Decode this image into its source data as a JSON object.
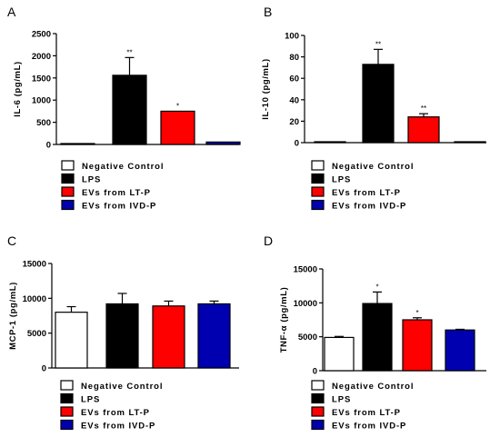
{
  "chart_data": [
    {
      "type": "bar",
      "panel": "A",
      "ylabel": "IL-6 (pg/mL)",
      "ylim": [
        0,
        2500
      ],
      "yticks": [
        0,
        500,
        1000,
        1500,
        2000,
        2500
      ],
      "categories": [
        "Negative Control",
        "LPS",
        "EVs from LT-P",
        "EVs from IVD-P"
      ],
      "values": [
        20,
        1560,
        750,
        55
      ],
      "errors": [
        0,
        400,
        0,
        0
      ],
      "significance": [
        "",
        "**",
        "*",
        ""
      ],
      "legend": [
        "Negative Control",
        "LPS",
        "EVs from LT-P",
        "EVs from IVD-P"
      ]
    },
    {
      "type": "bar",
      "panel": "B",
      "ylabel": "IL-10 (pg/mL)",
      "ylim": [
        0,
        100
      ],
      "yticks": [
        0,
        20,
        40,
        60,
        80,
        100
      ],
      "categories": [
        "Negative Control",
        "LPS",
        "EVs from LT-P",
        "EVs from IVD-P"
      ],
      "values": [
        0.5,
        73,
        24,
        0.3
      ],
      "errors": [
        0,
        14,
        3,
        0
      ],
      "significance": [
        "",
        "**",
        "**",
        ""
      ],
      "legend": [
        "Negative Control",
        "LPS",
        "EVs from LT-P",
        "EVs from IVD-P"
      ]
    },
    {
      "type": "bar",
      "panel": "C",
      "ylabel": "MCP-1 (pg/mL)",
      "ylim": [
        0,
        15000
      ],
      "yticks": [
        0,
        5000,
        10000,
        15000
      ],
      "categories": [
        "Negative Control",
        "LPS",
        "EVs from LT-P",
        "EVs from IVD-P"
      ],
      "values": [
        8000,
        9200,
        8900,
        9200
      ],
      "errors": [
        800,
        1500,
        700,
        400
      ],
      "significance": [
        "",
        "",
        "",
        ""
      ],
      "legend": [
        "Negative Control",
        "LPS",
        "EVs from LT-P",
        "EVs from IVD-P"
      ]
    },
    {
      "type": "bar",
      "panel": "D",
      "ylabel": "TNF-α (pg/mL)",
      "ylim": [
        0,
        15000
      ],
      "yticks": [
        0,
        5000,
        10000,
        15000
      ],
      "categories": [
        "Negative Control",
        "LPS",
        "EVs from LT-P",
        "EVs from IVD-P"
      ],
      "values": [
        4900,
        9900,
        7500,
        6000
      ],
      "errors": [
        150,
        1700,
        300,
        100
      ],
      "significance": [
        "",
        "*",
        "*",
        ""
      ],
      "legend": [
        "Negative Control",
        "LPS",
        "EVs from LT-P",
        "EVs from IVD-P"
      ]
    }
  ],
  "colors": {
    "Negative Control": "#ffffff",
    "LPS": "#000000",
    "EVs from LT-P": "#ff0000",
    "EVs from IVD-P": "#0000b0"
  }
}
